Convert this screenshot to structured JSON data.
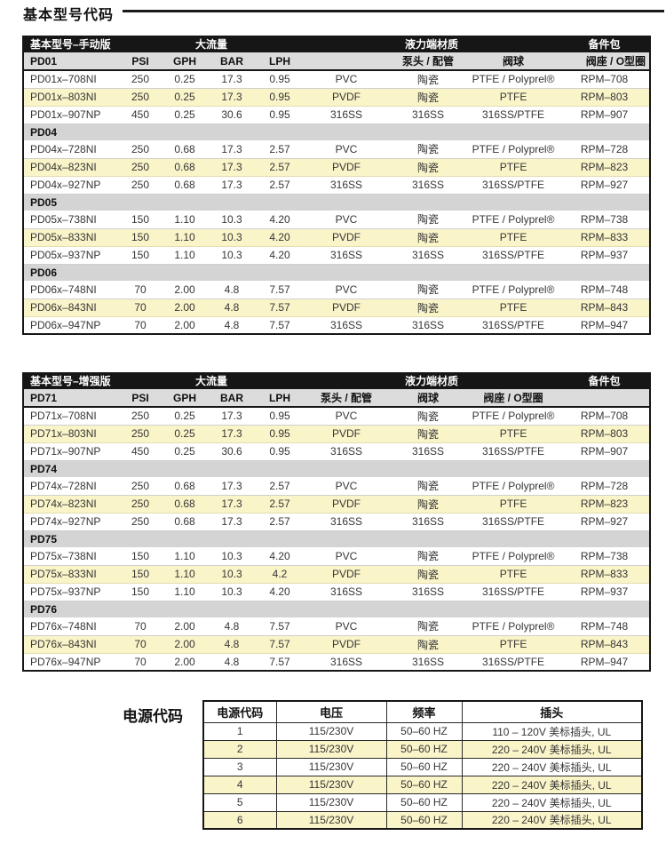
{
  "title": "基本型号代码",
  "colors": {
    "header_bg": "#161616",
    "subheader_bg": "#dcdcdc",
    "section_bg": "#d4d4d4",
    "highlight_row": "#faf4c9"
  },
  "model_tables": [
    {
      "header_left": "基本型号–手动版",
      "header_flow": "大流量",
      "header_material": "液力端材质",
      "header_kit": "备件包",
      "subheader": {
        "psi": "PSI",
        "gph": "GPH",
        "bar": "BAR",
        "lph": "LPH",
        "pump_head": "泵头 / 配管",
        "valve_ball": "阀球",
        "valve_seat": "阀座 / O型圈"
      },
      "sections": [
        {
          "name": "PD01",
          "rows": [
            {
              "model": "PD01x–708NI",
              "psi": "250",
              "gph": "0.25",
              "bar": "17.3",
              "lph": "0.95",
              "pump_head": "PVC",
              "valve_ball": "陶瓷",
              "valve_seat": "PTFE / Polyprel®",
              "kit": "RPM–708",
              "highlight": false
            },
            {
              "model": "PD01x–803NI",
              "psi": "250",
              "gph": "0.25",
              "bar": "17.3",
              "lph": "0.95",
              "pump_head": "PVDF",
              "valve_ball": "陶瓷",
              "valve_seat": "PTFE",
              "kit": "RPM–803",
              "highlight": true
            },
            {
              "model": "PD01x–907NP",
              "psi": "450",
              "gph": "0.25",
              "bar": "30.6",
              "lph": "0.95",
              "pump_head": "316SS",
              "valve_ball": "316SS",
              "valve_seat": "316SS/PTFE",
              "kit": "RPM–907",
              "highlight": false
            }
          ]
        },
        {
          "name": "PD04",
          "rows": [
            {
              "model": "PD04x–728NI",
              "psi": "250",
              "gph": "0.68",
              "bar": "17.3",
              "lph": "2.57",
              "pump_head": "PVC",
              "valve_ball": "陶瓷",
              "valve_seat": "PTFE / Polyprel®",
              "kit": "RPM–728",
              "highlight": false
            },
            {
              "model": "PD04x–823NI",
              "psi": "250",
              "gph": "0.68",
              "bar": "17.3",
              "lph": "2.57",
              "pump_head": "PVDF",
              "valve_ball": "陶瓷",
              "valve_seat": "PTFE",
              "kit": "RPM–823",
              "highlight": true
            },
            {
              "model": "PD04x–927NP",
              "psi": "250",
              "gph": "0.68",
              "bar": "17.3",
              "lph": "2.57",
              "pump_head": "316SS",
              "valve_ball": "316SS",
              "valve_seat": "316SS/PTFE",
              "kit": "RPM–927",
              "highlight": false
            }
          ]
        },
        {
          "name": "PD05",
          "rows": [
            {
              "model": "PD05x–738NI",
              "psi": "150",
              "gph": "1.10",
              "bar": "10.3",
              "lph": "4.20",
              "pump_head": "PVC",
              "valve_ball": "陶瓷",
              "valve_seat": "PTFE / Polyprel®",
              "kit": "RPM–738",
              "highlight": false
            },
            {
              "model": "PD05x–833NI",
              "psi": "150",
              "gph": "1.10",
              "bar": "10.3",
              "lph": "4.20",
              "pump_head": "PVDF",
              "valve_ball": "陶瓷",
              "valve_seat": "PTFE",
              "kit": "RPM–833",
              "highlight": true
            },
            {
              "model": "PD05x–937NP",
              "psi": "150",
              "gph": "1.10",
              "bar": "10.3",
              "lph": "4.20",
              "pump_head": "316SS",
              "valve_ball": "316SS",
              "valve_seat": "316SS/PTFE",
              "kit": "RPM–937",
              "highlight": false
            }
          ]
        },
        {
          "name": "PD06",
          "rows": [
            {
              "model": "PD06x–748NI",
              "psi": "70",
              "gph": "2.00",
              "bar": "4.8",
              "lph": "7.57",
              "pump_head": "PVC",
              "valve_ball": "陶瓷",
              "valve_seat": "PTFE / Polyprel®",
              "kit": "RPM–748",
              "highlight": false
            },
            {
              "model": "PD06x–843NI",
              "psi": "70",
              "gph": "2.00",
              "bar": "4.8",
              "lph": "7.57",
              "pump_head": "PVDF",
              "valve_ball": "陶瓷",
              "valve_seat": "PTFE",
              "kit": "RPM–843",
              "highlight": true
            },
            {
              "model": "PD06x–947NP",
              "psi": "70",
              "gph": "2.00",
              "bar": "4.8",
              "lph": "7.57",
              "pump_head": "316SS",
              "valve_ball": "316SS",
              "valve_seat": "316SS/PTFE",
              "kit": "RPM–947",
              "highlight": false
            }
          ]
        }
      ]
    },
    {
      "header_left": "基本型号–增强版",
      "header_flow": "大流量",
      "header_material": "液力端材质",
      "header_kit": "备件包",
      "subheader": {
        "psi": "PSI",
        "gph": "GPH",
        "bar": "BAR",
        "lph": "LPH",
        "pump_head": "泵头 / 配管",
        "valve_ball": "阀球",
        "valve_seat": "阀座 / O型圈"
      },
      "sections": [
        {
          "name": "PD71",
          "rows": [
            {
              "model": "PD71x–708NI",
              "psi": "250",
              "gph": "0.25",
              "bar": "17.3",
              "lph": "0.95",
              "pump_head": "PVC",
              "valve_ball": "陶瓷",
              "valve_seat": "PTFE / Polyprel®",
              "kit": "RPM–708",
              "highlight": false
            },
            {
              "model": "PD71x–803NI",
              "psi": "250",
              "gph": "0.25",
              "bar": "17.3",
              "lph": "0.95",
              "pump_head": "PVDF",
              "valve_ball": "陶瓷",
              "valve_seat": "PTFE",
              "kit": "RPM–803",
              "highlight": true
            },
            {
              "model": "PD71x–907NP",
              "psi": "450",
              "gph": "0.25",
              "bar": "30.6",
              "lph": "0.95",
              "pump_head": "316SS",
              "valve_ball": "316SS",
              "valve_seat": "316SS/PTFE",
              "kit": "RPM–907",
              "highlight": false
            }
          ]
        },
        {
          "name": "PD74",
          "rows": [
            {
              "model": "PD74x–728NI",
              "psi": "250",
              "gph": "0.68",
              "bar": "17.3",
              "lph": "2.57",
              "pump_head": "PVC",
              "valve_ball": "陶瓷",
              "valve_seat": "PTFE / Polyprel®",
              "kit": "RPM–728",
              "highlight": false
            },
            {
              "model": "PD74x–823NI",
              "psi": "250",
              "gph": "0.68",
              "bar": "17.3",
              "lph": "2.57",
              "pump_head": "PVDF",
              "valve_ball": "陶瓷",
              "valve_seat": "PTFE",
              "kit": "RPM–823",
              "highlight": true
            },
            {
              "model": "PD74x–927NP",
              "psi": "250",
              "gph": "0.68",
              "bar": "17.3",
              "lph": "2.57",
              "pump_head": "316SS",
              "valve_ball": "316SS",
              "valve_seat": "316SS/PTFE",
              "kit": "RPM–927",
              "highlight": false
            }
          ]
        },
        {
          "name": "PD75",
          "rows": [
            {
              "model": "PD75x–738NI",
              "psi": "150",
              "gph": "1.10",
              "bar": "10.3",
              "lph": "4.20",
              "pump_head": "PVC",
              "valve_ball": "陶瓷",
              "valve_seat": "PTFE / Polyprel®",
              "kit": "RPM–738",
              "highlight": false
            },
            {
              "model": "PD75x–833NI",
              "psi": "150",
              "gph": "1.10",
              "bar": "10.3",
              "lph": "4.2",
              "pump_head": "PVDF",
              "valve_ball": "陶瓷",
              "valve_seat": "PTFE",
              "kit": "RPM–833",
              "highlight": true
            },
            {
              "model": "PD75x–937NP",
              "psi": "150",
              "gph": "1.10",
              "bar": "10.3",
              "lph": "4.20",
              "pump_head": "316SS",
              "valve_ball": "316SS",
              "valve_seat": "316SS/PTFE",
              "kit": "RPM–937",
              "highlight": false
            }
          ]
        },
        {
          "name": "PD76",
          "rows": [
            {
              "model": "PD76x–748NI",
              "psi": "70",
              "gph": "2.00",
              "bar": "4.8",
              "lph": "7.57",
              "pump_head": "PVC",
              "valve_ball": "陶瓷",
              "valve_seat": "PTFE / Polyprel®",
              "kit": "RPM–748",
              "highlight": false
            },
            {
              "model": "PD76x–843NI",
              "psi": "70",
              "gph": "2.00",
              "bar": "4.8",
              "lph": "7.57",
              "pump_head": "PVDF",
              "valve_ball": "陶瓷",
              "valve_seat": "PTFE",
              "kit": "RPM–843",
              "highlight": true
            },
            {
              "model": "PD76x–947NP",
              "psi": "70",
              "gph": "2.00",
              "bar": "4.8",
              "lph": "7.57",
              "pump_head": "316SS",
              "valve_ball": "316SS",
              "valve_seat": "316SS/PTFE",
              "kit": "RPM–947",
              "highlight": false
            }
          ]
        }
      ]
    }
  ],
  "power": {
    "label": "电源代码",
    "headers": [
      "电源代码",
      "电压",
      "频率",
      "插头"
    ],
    "rows": [
      {
        "code": "1",
        "voltage": "115/230V",
        "freq": "50–60 HZ",
        "plug": "110 – 120V 美标插头, UL",
        "highlight": false
      },
      {
        "code": "2",
        "voltage": "115/230V",
        "freq": "50–60 HZ",
        "plug": "220 – 240V 美标插头, UL",
        "highlight": true
      },
      {
        "code": "3",
        "voltage": "115/230V",
        "freq": "50–60 HZ",
        "plug": "220 – 240V 美标插头, UL",
        "highlight": false
      },
      {
        "code": "4",
        "voltage": "115/230V",
        "freq": "50–60 HZ",
        "plug": "220 – 240V 美标插头, UL",
        "highlight": true
      },
      {
        "code": "5",
        "voltage": "115/230V",
        "freq": "50–60 HZ",
        "plug": "220 – 240V 美标插头, UL",
        "highlight": false
      },
      {
        "code": "6",
        "voltage": "115/230V",
        "freq": "50–60 HZ",
        "plug": "220 – 240V 美标插头, UL",
        "highlight": true
      }
    ]
  }
}
